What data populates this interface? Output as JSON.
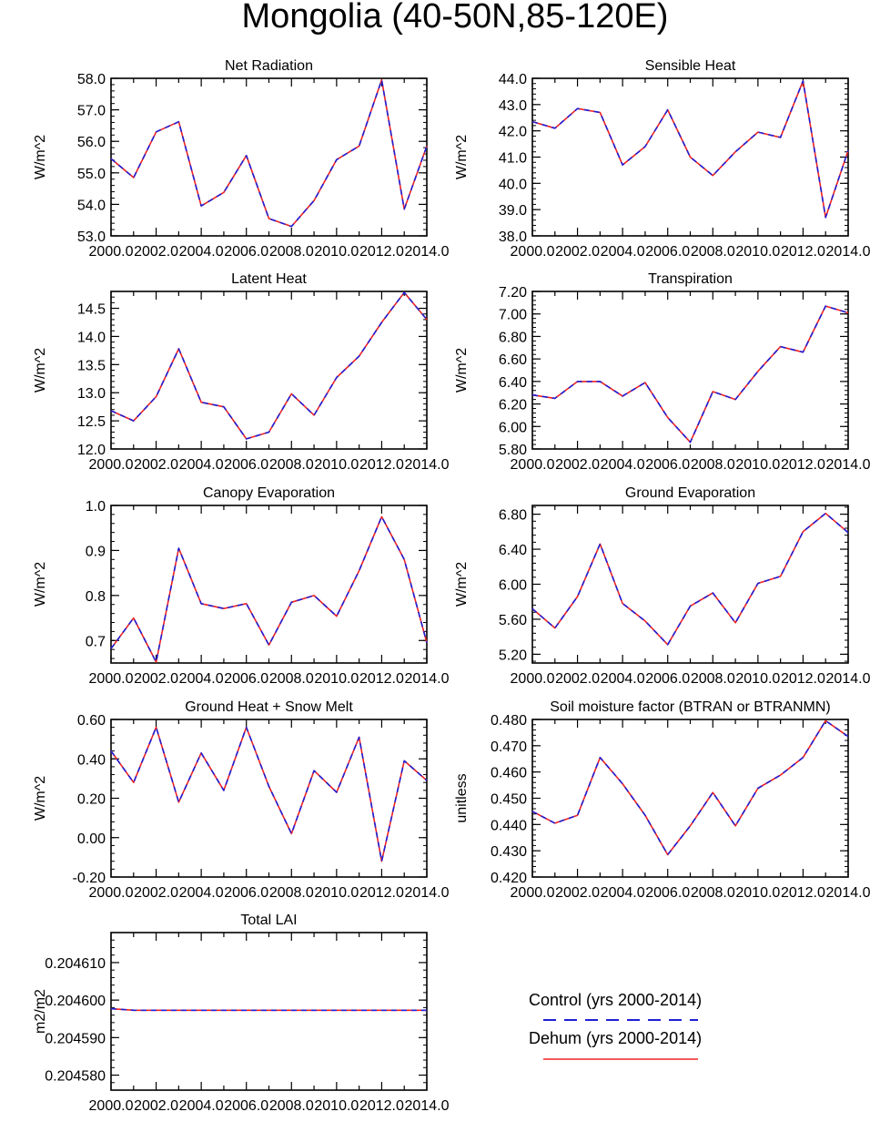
{
  "figure_title": "Mongolia (40-50N,85-120E)",
  "colors": {
    "control": "#1f1fd6",
    "dehum": "#ee2222",
    "axis": "#000000"
  },
  "legend": {
    "entries": [
      {
        "label": "Control (yrs 2000-2014)",
        "style": "dashed",
        "color": "#1f1fd6"
      },
      {
        "label": "Dehum (yrs 2000-2014)",
        "style": "solid",
        "color": "#ee2222"
      }
    ]
  },
  "chart_data": [
    {
      "type": "line",
      "title": "Net Radiation",
      "xlabel": "",
      "ylabel": "W/m^2",
      "x": [
        2000,
        2001,
        2002,
        2003,
        2004,
        2005,
        2006,
        2007,
        2008,
        2009,
        2010,
        2011,
        2012,
        2013,
        2014
      ],
      "xlim": [
        2000,
        2014
      ],
      "xticks": [
        "2000.0",
        "2002.0",
        "2004.0",
        "2006.0",
        "2008.0",
        "2010.0",
        "2012.0",
        "2014.0"
      ],
      "ylim": [
        53,
        58
      ],
      "yticks": [
        {
          "v": 53,
          "t": "53.0"
        },
        {
          "v": 54,
          "t": "54.0"
        },
        {
          "v": 55,
          "t": "55.0"
        },
        {
          "v": 56,
          "t": "56.0"
        },
        {
          "v": 57,
          "t": "57.0"
        },
        {
          "v": 58,
          "t": "58.0"
        }
      ],
      "series": [
        {
          "name": "Control (yrs 2000-2014)",
          "values": [
            55.45,
            54.85,
            56.3,
            56.62,
            53.95,
            54.38,
            55.55,
            53.55,
            53.3,
            54.12,
            55.42,
            55.85,
            57.95,
            53.85,
            55.85
          ]
        },
        {
          "name": "Dehum (yrs 2000-2014)",
          "values": [
            55.45,
            54.85,
            56.3,
            56.62,
            53.95,
            54.38,
            55.55,
            53.55,
            53.3,
            54.12,
            55.42,
            55.85,
            57.95,
            53.85,
            55.85
          ]
        }
      ]
    },
    {
      "type": "line",
      "title": "Sensible Heat",
      "xlabel": "",
      "ylabel": "W/m^2",
      "x": [
        2000,
        2001,
        2002,
        2003,
        2004,
        2005,
        2006,
        2007,
        2008,
        2009,
        2010,
        2011,
        2012,
        2013,
        2014
      ],
      "xlim": [
        2000,
        2014
      ],
      "xticks": [
        "2000.0",
        "2002.0",
        "2004.0",
        "2006.0",
        "2008.0",
        "2010.0",
        "2012.0",
        "2014.0"
      ],
      "ylim": [
        38,
        44
      ],
      "yticks": [
        {
          "v": 38,
          "t": "38.0"
        },
        {
          "v": 39,
          "t": "39.0"
        },
        {
          "v": 40,
          "t": "40.0"
        },
        {
          "v": 41,
          "t": "41.0"
        },
        {
          "v": 42,
          "t": "42.0"
        },
        {
          "v": 43,
          "t": "43.0"
        },
        {
          "v": 44,
          "t": "44.0"
        }
      ],
      "series": [
        {
          "name": "Control (yrs 2000-2014)",
          "values": [
            42.35,
            42.1,
            42.85,
            42.7,
            40.7,
            41.4,
            42.8,
            41.0,
            40.3,
            41.2,
            41.95,
            41.75,
            43.9,
            38.7,
            41.25
          ]
        },
        {
          "name": "Dehum (yrs 2000-2014)",
          "values": [
            42.35,
            42.1,
            42.85,
            42.7,
            40.7,
            41.4,
            42.8,
            41.0,
            40.3,
            41.2,
            41.95,
            41.75,
            43.9,
            38.7,
            41.25
          ]
        }
      ]
    },
    {
      "type": "line",
      "title": "Latent Heat",
      "xlabel": "",
      "ylabel": "W/m^2",
      "x": [
        2000,
        2001,
        2002,
        2003,
        2004,
        2005,
        2006,
        2007,
        2008,
        2009,
        2010,
        2011,
        2012,
        2013,
        2014
      ],
      "xlim": [
        2000,
        2014
      ],
      "xticks": [
        "2000.0",
        "2002.0",
        "2004.0",
        "2006.0",
        "2008.0",
        "2010.0",
        "2012.0",
        "2014.0"
      ],
      "ylim": [
        12,
        14.8
      ],
      "yticks": [
        {
          "v": 12,
          "t": "12.0"
        },
        {
          "v": 12.5,
          "t": "12.5"
        },
        {
          "v": 13,
          "t": "13.0"
        },
        {
          "v": 13.5,
          "t": "13.5"
        },
        {
          "v": 14,
          "t": "14.0"
        },
        {
          "v": 14.5,
          "t": "14.5"
        }
      ],
      "series": [
        {
          "name": "Control (yrs 2000-2014)",
          "values": [
            12.68,
            12.5,
            12.93,
            13.78,
            12.83,
            12.75,
            12.18,
            12.3,
            12.98,
            12.6,
            13.27,
            13.65,
            14.25,
            14.78,
            14.3
          ]
        },
        {
          "name": "Dehum (yrs 2000-2014)",
          "values": [
            12.68,
            12.5,
            12.93,
            13.78,
            12.83,
            12.75,
            12.18,
            12.3,
            12.98,
            12.6,
            13.27,
            13.65,
            14.25,
            14.78,
            14.3
          ]
        }
      ]
    },
    {
      "type": "line",
      "title": "Transpiration",
      "xlabel": "",
      "ylabel": "W/m^2",
      "x": [
        2000,
        2001,
        2002,
        2003,
        2004,
        2005,
        2006,
        2007,
        2008,
        2009,
        2010,
        2011,
        2012,
        2013,
        2014
      ],
      "xlim": [
        2000,
        2014
      ],
      "xticks": [
        "2000.0",
        "2002.0",
        "2004.0",
        "2006.0",
        "2008.0",
        "2010.0",
        "2012.0",
        "2014.0"
      ],
      "ylim": [
        5.8,
        7.2
      ],
      "yticks": [
        {
          "v": 5.8,
          "t": "5.80"
        },
        {
          "v": 6.0,
          "t": "6.00"
        },
        {
          "v": 6.2,
          "t": "6.20"
        },
        {
          "v": 6.4,
          "t": "6.40"
        },
        {
          "v": 6.6,
          "t": "6.60"
        },
        {
          "v": 6.8,
          "t": "6.80"
        },
        {
          "v": 7.0,
          "t": "7.00"
        },
        {
          "v": 7.2,
          "t": "7.20"
        }
      ],
      "series": [
        {
          "name": "Control (yrs 2000-2014)",
          "values": [
            6.28,
            6.25,
            6.4,
            6.4,
            6.27,
            6.39,
            6.08,
            5.86,
            6.31,
            6.24,
            6.49,
            6.71,
            6.66,
            7.07,
            7.01
          ]
        },
        {
          "name": "Dehum (yrs 2000-2014)",
          "values": [
            6.28,
            6.25,
            6.4,
            6.4,
            6.27,
            6.39,
            6.08,
            5.86,
            6.31,
            6.24,
            6.49,
            6.71,
            6.66,
            7.07,
            7.01
          ]
        }
      ]
    },
    {
      "type": "line",
      "title": "Canopy Evaporation",
      "xlabel": "",
      "ylabel": "W/m^2",
      "x": [
        2000,
        2001,
        2002,
        2003,
        2004,
        2005,
        2006,
        2007,
        2008,
        2009,
        2010,
        2011,
        2012,
        2013,
        2014
      ],
      "xlim": [
        2000,
        2014
      ],
      "xticks": [
        "2000.0",
        "2002.0",
        "2004.0",
        "2006.0",
        "2008.0",
        "2010.0",
        "2012.0",
        "2014.0"
      ],
      "ylim": [
        0.65,
        1.0
      ],
      "yticks": [
        {
          "v": 0.7,
          "t": "0.7"
        },
        {
          "v": 0.8,
          "t": "0.8"
        },
        {
          "v": 0.9,
          "t": "0.9"
        },
        {
          "v": 1.0,
          "t": "1.0"
        }
      ],
      "series": [
        {
          "name": "Control (yrs 2000-2014)",
          "values": [
            0.682,
            0.75,
            0.652,
            0.905,
            0.782,
            0.771,
            0.782,
            0.69,
            0.785,
            0.8,
            0.754,
            0.855,
            0.975,
            0.88,
            0.695
          ]
        },
        {
          "name": "Dehum (yrs 2000-2014)",
          "values": [
            0.682,
            0.75,
            0.652,
            0.905,
            0.782,
            0.771,
            0.782,
            0.69,
            0.785,
            0.8,
            0.754,
            0.855,
            0.975,
            0.88,
            0.695
          ]
        }
      ]
    },
    {
      "type": "line",
      "title": "Ground Evaporation",
      "xlabel": "",
      "ylabel": "W/m^2",
      "x": [
        2000,
        2001,
        2002,
        2003,
        2004,
        2005,
        2006,
        2007,
        2008,
        2009,
        2010,
        2011,
        2012,
        2013,
        2014
      ],
      "xlim": [
        2000,
        2014
      ],
      "xticks": [
        "2000.0",
        "2002.0",
        "2004.0",
        "2006.0",
        "2008.0",
        "2010.0",
        "2012.0",
        "2014.0"
      ],
      "ylim": [
        5.1,
        6.9
      ],
      "yticks": [
        {
          "v": 5.2,
          "t": "5.20"
        },
        {
          "v": 5.6,
          "t": "5.60"
        },
        {
          "v": 6.0,
          "t": "6.00"
        },
        {
          "v": 6.4,
          "t": "6.40"
        },
        {
          "v": 6.8,
          "t": "6.80"
        }
      ],
      "series": [
        {
          "name": "Control (yrs 2000-2014)",
          "values": [
            5.72,
            5.5,
            5.86,
            6.46,
            5.78,
            5.58,
            5.31,
            5.75,
            5.9,
            5.56,
            6.01,
            6.09,
            6.6,
            6.81,
            6.59
          ]
        },
        {
          "name": "Dehum (yrs 2000-2014)",
          "values": [
            5.72,
            5.5,
            5.86,
            6.46,
            5.78,
            5.58,
            5.31,
            5.75,
            5.9,
            5.56,
            6.01,
            6.09,
            6.6,
            6.81,
            6.59
          ]
        }
      ]
    },
    {
      "type": "line",
      "title": "Ground Heat + Snow Melt",
      "xlabel": "",
      "ylabel": "W/m^2",
      "x": [
        2000,
        2001,
        2002,
        2003,
        2004,
        2005,
        2006,
        2007,
        2008,
        2009,
        2010,
        2011,
        2012,
        2013,
        2014
      ],
      "xlim": [
        2000,
        2014
      ],
      "xticks": [
        "2000.0",
        "2002.0",
        "2004.0",
        "2006.0",
        "2008.0",
        "2010.0",
        "2012.0",
        "2014.0"
      ],
      "ylim": [
        -0.2,
        0.6
      ],
      "yticks": [
        {
          "v": -0.2,
          "t": "-0.20"
        },
        {
          "v": 0.0,
          "t": "0.00"
        },
        {
          "v": 0.2,
          "t": "0.20"
        },
        {
          "v": 0.4,
          "t": "0.40"
        },
        {
          "v": 0.6,
          "t": "0.60"
        }
      ],
      "series": [
        {
          "name": "Control (yrs 2000-2014)",
          "values": [
            0.44,
            0.28,
            0.56,
            0.18,
            0.43,
            0.24,
            0.56,
            0.26,
            0.02,
            0.34,
            0.23,
            0.51,
            -0.12,
            0.39,
            0.29
          ]
        },
        {
          "name": "Dehum (yrs 2000-2014)",
          "values": [
            0.44,
            0.28,
            0.56,
            0.18,
            0.43,
            0.24,
            0.56,
            0.26,
            0.02,
            0.34,
            0.23,
            0.51,
            -0.12,
            0.39,
            0.29
          ]
        }
      ]
    },
    {
      "type": "line",
      "title": "Soil moisture factor (BTRAN or BTRANMN)",
      "xlabel": "",
      "ylabel": "unitless",
      "x": [
        2000,
        2001,
        2002,
        2003,
        2004,
        2005,
        2006,
        2007,
        2008,
        2009,
        2010,
        2011,
        2012,
        2013,
        2014
      ],
      "xlim": [
        2000,
        2014
      ],
      "xticks": [
        "2000.0",
        "2002.0",
        "2004.0",
        "2006.0",
        "2008.0",
        "2010.0",
        "2012.0",
        "2014.0"
      ],
      "ylim": [
        0.42,
        0.48
      ],
      "yticks": [
        {
          "v": 0.42,
          "t": "0.420"
        },
        {
          "v": 0.43,
          "t": "0.430"
        },
        {
          "v": 0.44,
          "t": "0.440"
        },
        {
          "v": 0.45,
          "t": "0.450"
        },
        {
          "v": 0.46,
          "t": "0.460"
        },
        {
          "v": 0.47,
          "t": "0.470"
        },
        {
          "v": 0.48,
          "t": "0.480"
        }
      ],
      "series": [
        {
          "name": "Control (yrs 2000-2014)",
          "values": [
            0.445,
            0.4405,
            0.4435,
            0.4655,
            0.4555,
            0.4435,
            0.4285,
            0.4395,
            0.4522,
            0.4395,
            0.4538,
            0.4588,
            0.4655,
            0.4795,
            0.4735
          ]
        },
        {
          "name": "Dehum (yrs 2000-2014)",
          "values": [
            0.445,
            0.4405,
            0.4435,
            0.4655,
            0.4555,
            0.4435,
            0.4285,
            0.4395,
            0.4522,
            0.4395,
            0.4538,
            0.4588,
            0.4655,
            0.4795,
            0.4735
          ]
        }
      ]
    },
    {
      "type": "line",
      "title": "Total LAI",
      "xlabel": "",
      "ylabel": "m2/m2",
      "x": [
        2000,
        2001,
        2002,
        2003,
        2004,
        2005,
        2006,
        2007,
        2008,
        2009,
        2010,
        2011,
        2012,
        2013,
        2014
      ],
      "xlim": [
        2000,
        2014
      ],
      "xticks": [
        "2000.0",
        "2002.0",
        "2004.0",
        "2006.0",
        "2008.0",
        "2010.0",
        "2012.0",
        "2014.0"
      ],
      "ylim": [
        0.204576,
        0.204618
      ],
      "yticks": [
        {
          "v": 0.20458,
          "t": "0.204580"
        },
        {
          "v": 0.20459,
          "t": "0.204590"
        },
        {
          "v": 0.2046,
          "t": "0.204600"
        },
        {
          "v": 0.20461,
          "t": "0.204610"
        }
      ],
      "series": [
        {
          "name": "Control (yrs 2000-2014)",
          "values": [
            0.2045977,
            0.2045973,
            0.2045973,
            0.2045973,
            0.2045973,
            0.2045973,
            0.2045973,
            0.2045973,
            0.2045973,
            0.2045973,
            0.2045973,
            0.2045973,
            0.2045973,
            0.2045973,
            0.2045973
          ]
        },
        {
          "name": "Dehum (yrs 2000-2014)",
          "values": [
            0.2045977,
            0.2045973,
            0.2045973,
            0.2045973,
            0.2045973,
            0.2045973,
            0.2045973,
            0.2045973,
            0.2045973,
            0.2045973,
            0.2045973,
            0.2045973,
            0.2045973,
            0.2045973,
            0.2045973
          ]
        }
      ]
    }
  ]
}
